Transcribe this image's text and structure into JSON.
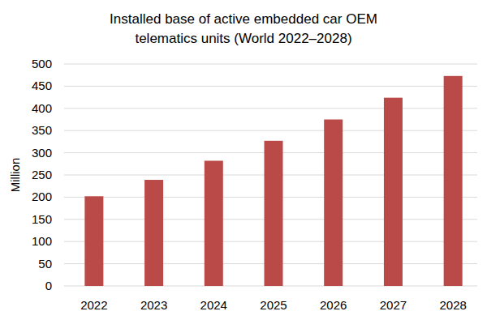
{
  "chart_data": {
    "type": "bar",
    "title": "Installed base of active embedded car OEM telematics units (World 2022–2028)",
    "y_label": "Million",
    "categories": [
      "2022",
      "2023",
      "2024",
      "2025",
      "2026",
      "2027",
      "2028"
    ],
    "values": [
      202,
      239,
      282,
      327,
      375,
      424,
      473
    ],
    "color": "#b94a48",
    "ylim": [
      0,
      500
    ],
    "yticks": [
      0,
      50,
      100,
      150,
      200,
      250,
      300,
      350,
      400,
      450,
      500
    ],
    "grid": true
  }
}
